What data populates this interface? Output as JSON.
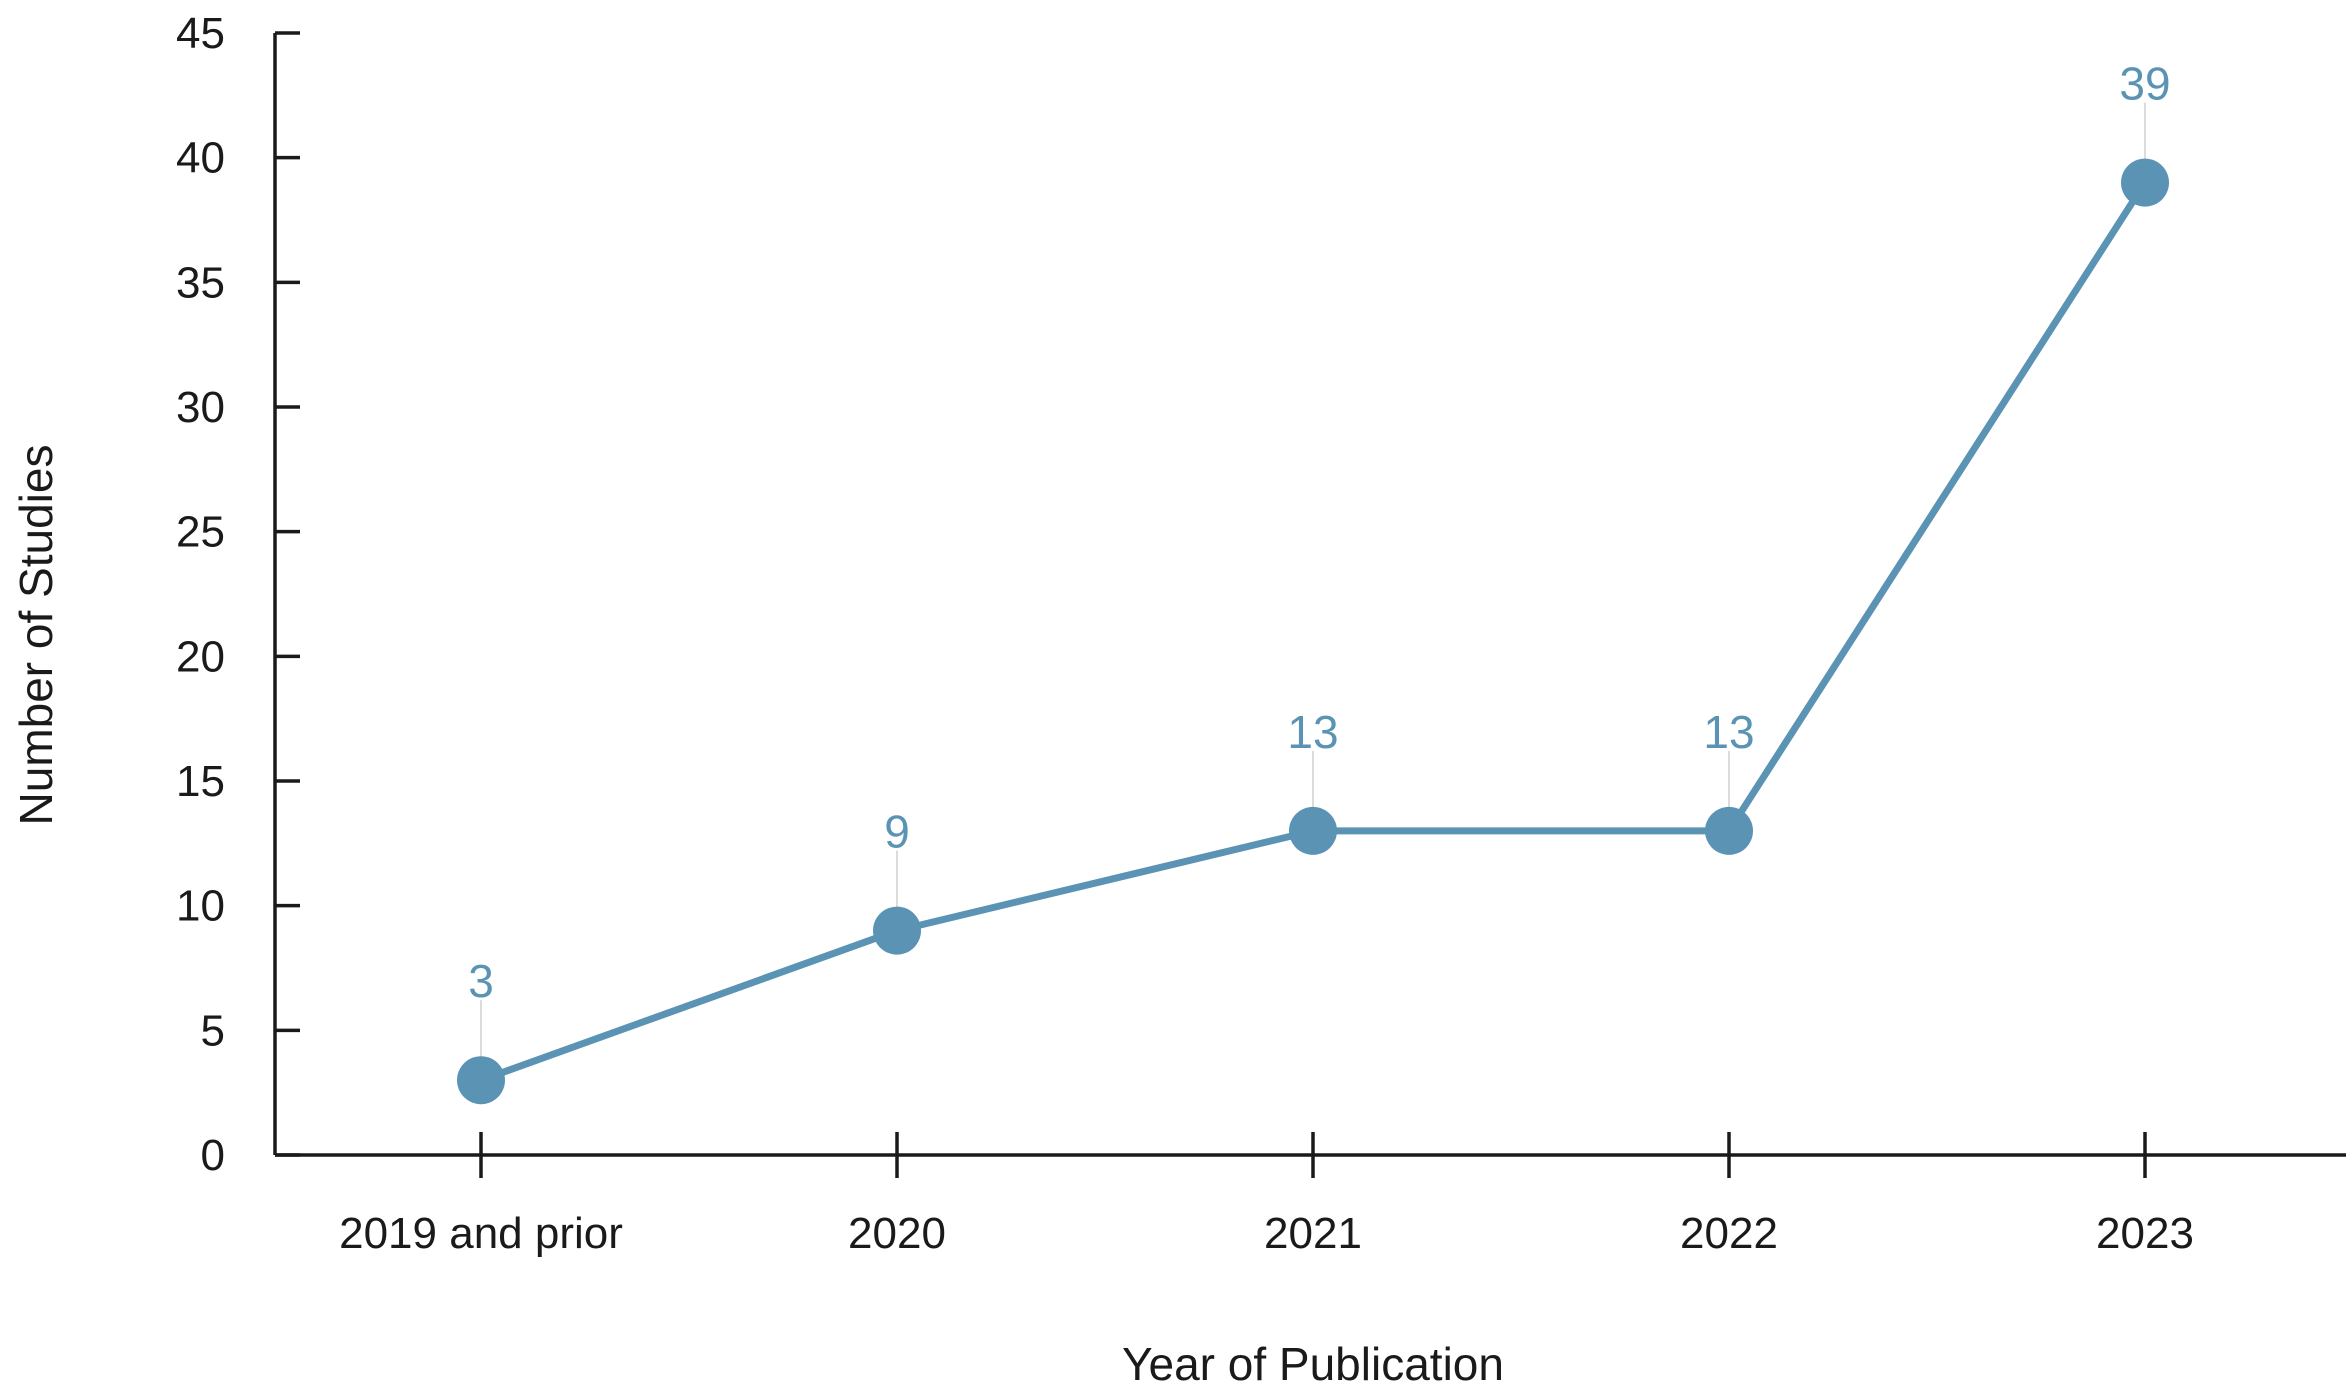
{
  "chart_data": {
    "type": "line",
    "categories": [
      "2019 and prior",
      "2020",
      "2021",
      "2022",
      "2023"
    ],
    "series": [
      {
        "values": [
          3,
          9,
          13,
          13,
          39
        ]
      }
    ],
    "data_labels": [
      "3",
      "9",
      "13",
      "13",
      "39"
    ],
    "xlabel": "Year of Publication",
    "ylabel": "Number of Studies",
    "ylim": [
      0,
      45
    ],
    "yticks": [
      0,
      5,
      10,
      15,
      20,
      25,
      30,
      35,
      40,
      45
    ],
    "ytick_labels": [
      "0",
      "5",
      "10",
      "15",
      "20",
      "25",
      "30",
      "35",
      "40",
      "45"
    ],
    "grid": false,
    "legend": "none",
    "colors": {
      "series": "#5b93b4",
      "axis": "#1a1a1a",
      "leader": "#dcdcdc"
    }
  }
}
